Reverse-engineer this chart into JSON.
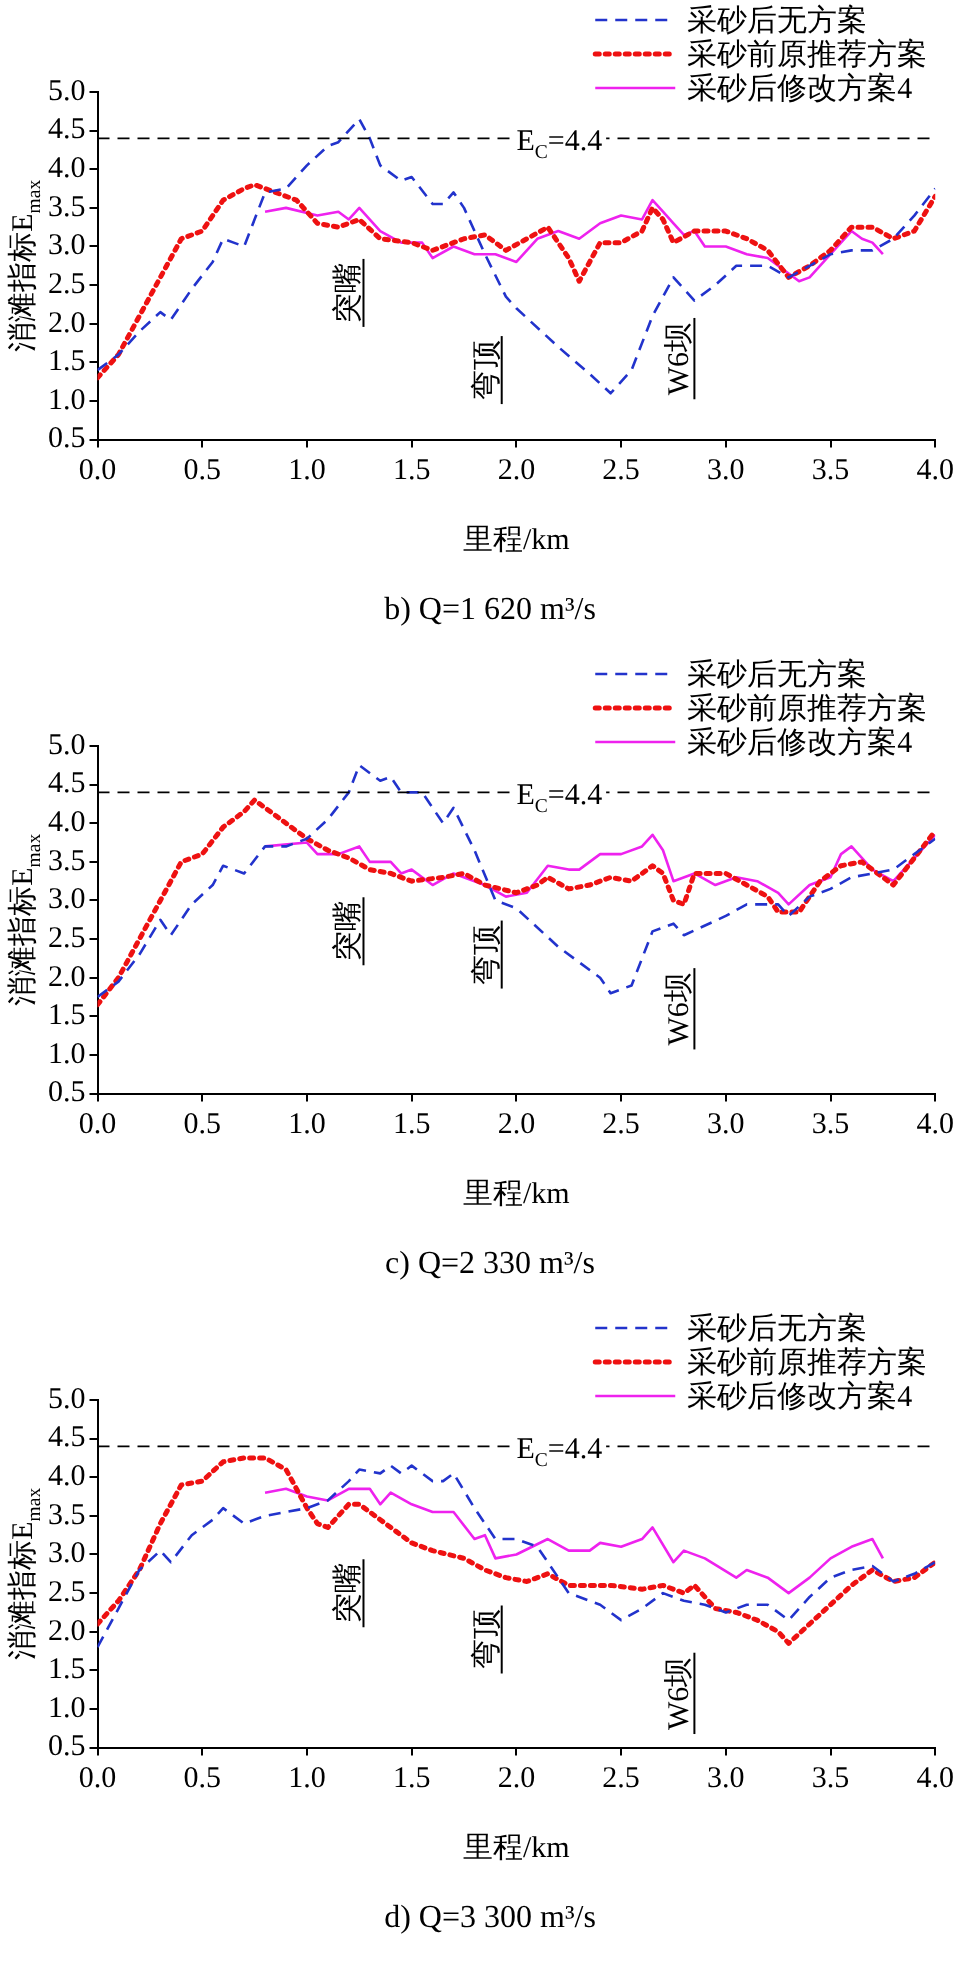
{
  "chart_data": [
    {
      "type": "line",
      "title": "b) Q=1 620 m³/s",
      "xlabel": "里程/km",
      "ylabel": "消滩指标E$_{max}$",
      "xlim": [
        0,
        4
      ],
      "ylim": [
        0.5,
        5
      ],
      "xticks": [
        {
          "value": 0,
          "label": "0.0"
        },
        {
          "value": 0.5,
          "label": "0.5"
        },
        {
          "value": 1,
          "label": "1.0"
        },
        {
          "value": 1.5,
          "label": "1.5"
        },
        {
          "value": 2,
          "label": "2.0"
        },
        {
          "value": 2.5,
          "label": "2.5"
        },
        {
          "value": 3,
          "label": "3.0"
        },
        {
          "value": 3.5,
          "label": "3.5"
        },
        {
          "value": 4,
          "label": "4.0"
        }
      ],
      "yticks": [
        {
          "value": 0.5,
          "label": "0.5"
        },
        {
          "value": 1,
          "label": "1.0"
        },
        {
          "value": 1.5,
          "label": "1.5"
        },
        {
          "value": 2,
          "label": "2.0"
        },
        {
          "value": 2.5,
          "label": "2.5"
        },
        {
          "value": 3,
          "label": "3.0"
        },
        {
          "value": 3.5,
          "label": "3.5"
        },
        {
          "value": 4,
          "label": "4.0"
        },
        {
          "value": 4.5,
          "label": "4.5"
        },
        {
          "value": 5,
          "label": "5.0"
        }
      ],
      "legend": "top right",
      "grid": false,
      "marker": "none",
      "ref_lines": [
        {
          "axis": "y",
          "value": 4.4,
          "label": "E$_{C}$=4.4",
          "color": "#000000",
          "line_style": "dashed"
        }
      ],
      "annotations": [
        "突嘴",
        "弯顶",
        "W6坝"
      ],
      "series": [
        {
          "name": "采砂后无方案",
          "color": "#2233cc",
          "line_style": "dashed",
          "x": [
            0,
            0.1,
            0.2,
            0.3,
            0.35,
            0.45,
            0.55,
            0.6,
            0.65,
            0.7,
            0.8,
            0.9,
            1.0,
            1.1,
            1.15,
            1.25,
            1.3,
            1.35,
            1.45,
            1.5,
            1.6,
            1.65,
            1.7,
            1.75,
            1.85,
            1.95,
            2.0,
            2.2,
            2.35,
            2.45,
            2.55,
            2.65,
            2.75,
            2.85,
            2.95,
            3.05,
            3.2,
            3.3,
            3.4,
            3.5,
            3.6,
            3.7,
            3.8,
            3.9,
            4.0
          ],
          "values": [
            1.4,
            1.6,
            1.9,
            2.15,
            2.05,
            2.45,
            2.8,
            3.1,
            3.05,
            3.0,
            3.7,
            3.75,
            4.05,
            4.3,
            4.35,
            4.65,
            4.4,
            4.05,
            3.85,
            3.9,
            3.55,
            3.55,
            3.7,
            3.5,
            2.9,
            2.35,
            2.2,
            1.7,
            1.35,
            1.1,
            1.4,
            2.1,
            2.6,
            2.3,
            2.5,
            2.75,
            2.75,
            2.6,
            2.75,
            2.9,
            2.95,
            2.95,
            3.1,
            3.4,
            3.75
          ]
        },
        {
          "name": "采砂前原推荐方案",
          "color": "#ee1111",
          "line_style": "dotted",
          "x": [
            0,
            0.1,
            0.2,
            0.3,
            0.4,
            0.5,
            0.6,
            0.7,
            0.75,
            0.85,
            0.95,
            1.05,
            1.15,
            1.25,
            1.35,
            1.5,
            1.6,
            1.75,
            1.85,
            1.95,
            2.05,
            2.15,
            2.25,
            2.3,
            2.4,
            2.5,
            2.6,
            2.65,
            2.7,
            2.75,
            2.85,
            3.0,
            3.1,
            3.2,
            3.3,
            3.4,
            3.5,
            3.6,
            3.7,
            3.8,
            3.9,
            4.0
          ],
          "values": [
            1.3,
            1.6,
            2.1,
            2.6,
            3.1,
            3.2,
            3.6,
            3.75,
            3.8,
            3.7,
            3.6,
            3.3,
            3.25,
            3.35,
            3.1,
            3.05,
            2.95,
            3.1,
            3.15,
            2.95,
            3.1,
            3.25,
            2.85,
            2.55,
            3.05,
            3.05,
            3.2,
            3.5,
            3.35,
            3.05,
            3.2,
            3.2,
            3.1,
            2.95,
            2.6,
            2.75,
            2.95,
            3.25,
            3.25,
            3.1,
            3.2,
            3.65
          ]
        },
        {
          "name": "采砂后修改方案4",
          "color": "#ee22ee",
          "line_style": "solid",
          "x": [
            0.8,
            0.9,
            1.05,
            1.15,
            1.2,
            1.25,
            1.35,
            1.45,
            1.55,
            1.6,
            1.7,
            1.8,
            1.9,
            2.0,
            2.1,
            2.2,
            2.3,
            2.4,
            2.5,
            2.6,
            2.65,
            2.7,
            2.75,
            2.8,
            2.85,
            2.9,
            3.0,
            3.1,
            3.2,
            3.25,
            3.35,
            3.4,
            3.5,
            3.6,
            3.65,
            3.7,
            3.75
          ],
          "values": [
            3.45,
            3.5,
            3.4,
            3.45,
            3.35,
            3.5,
            3.2,
            3.05,
            3.05,
            2.85,
            3.0,
            2.9,
            2.9,
            2.8,
            3.1,
            3.2,
            3.1,
            3.3,
            3.4,
            3.35,
            3.6,
            3.45,
            3.3,
            3.15,
            3.2,
            3.0,
            3.0,
            2.9,
            2.85,
            2.75,
            2.55,
            2.6,
            2.9,
            3.2,
            3.1,
            3.05,
            2.9
          ]
        }
      ]
    },
    {
      "type": "line",
      "title": "c) Q=2 330 m³/s",
      "xlabel": "里程/km",
      "ylabel": "消滩指标E$_{max}$",
      "xlim": [
        0,
        4
      ],
      "ylim": [
        0.5,
        5
      ],
      "xticks": [
        {
          "value": 0,
          "label": "0.0"
        },
        {
          "value": 0.5,
          "label": "0.5"
        },
        {
          "value": 1,
          "label": "1.0"
        },
        {
          "value": 1.5,
          "label": "1.5"
        },
        {
          "value": 2,
          "label": "2.0"
        },
        {
          "value": 2.5,
          "label": "2.5"
        },
        {
          "value": 3,
          "label": "3.0"
        },
        {
          "value": 3.5,
          "label": "3.5"
        },
        {
          "value": 4,
          "label": "4.0"
        }
      ],
      "yticks": [
        {
          "value": 0.5,
          "label": "0.5"
        },
        {
          "value": 1,
          "label": "1.0"
        },
        {
          "value": 1.5,
          "label": "1.5"
        },
        {
          "value": 2,
          "label": "2.0"
        },
        {
          "value": 2.5,
          "label": "2.5"
        },
        {
          "value": 3,
          "label": "3.0"
        },
        {
          "value": 3.5,
          "label": "3.5"
        },
        {
          "value": 4,
          "label": "4.0"
        },
        {
          "value": 4.5,
          "label": "4.5"
        },
        {
          "value": 5,
          "label": "5.0"
        }
      ],
      "legend": "top right",
      "grid": false,
      "marker": "none",
      "ref_lines": [
        {
          "axis": "y",
          "value": 4.4,
          "label": "E$_{C}$=4.4",
          "color": "#000000",
          "line_style": "dashed"
        }
      ],
      "annotations": [
        "突嘴",
        "弯顶",
        "W6坝"
      ],
      "series": [
        {
          "name": "采砂后无方案",
          "color": "#2233cc",
          "line_style": "dashed",
          "x": [
            0,
            0.1,
            0.2,
            0.3,
            0.35,
            0.45,
            0.55,
            0.6,
            0.7,
            0.8,
            0.9,
            1.0,
            1.1,
            1.2,
            1.25,
            1.35,
            1.4,
            1.45,
            1.55,
            1.65,
            1.7,
            1.8,
            1.9,
            2.0,
            2.2,
            2.4,
            2.45,
            2.55,
            2.65,
            2.75,
            2.8,
            3.0,
            3.1,
            3.25,
            3.3,
            3.4,
            3.5,
            3.6,
            3.7,
            3.8,
            3.9,
            4.0
          ],
          "values": [
            1.75,
            1.95,
            2.3,
            2.75,
            2.55,
            2.95,
            3.2,
            3.45,
            3.35,
            3.7,
            3.7,
            3.8,
            4.05,
            4.4,
            4.75,
            4.55,
            4.6,
            4.4,
            4.4,
            4.0,
            4.2,
            3.65,
            3.0,
            2.9,
            2.4,
            2.0,
            1.8,
            1.9,
            2.6,
            2.7,
            2.55,
            2.8,
            2.95,
            2.95,
            2.8,
            3.05,
            3.15,
            3.3,
            3.35,
            3.4,
            3.6,
            3.8
          ]
        },
        {
          "name": "采砂前原推荐方案",
          "color": "#ee1111",
          "line_style": "dotted",
          "x": [
            0,
            0.1,
            0.2,
            0.3,
            0.4,
            0.5,
            0.6,
            0.7,
            0.75,
            0.85,
            1.0,
            1.1,
            1.2,
            1.3,
            1.4,
            1.5,
            1.65,
            1.75,
            1.85,
            2.0,
            2.1,
            2.15,
            2.25,
            2.35,
            2.45,
            2.55,
            2.65,
            2.7,
            2.75,
            2.8,
            2.85,
            3.0,
            3.1,
            3.2,
            3.25,
            3.35,
            3.45,
            3.55,
            3.65,
            3.75,
            3.8,
            3.9,
            4.0
          ],
          "values": [
            1.65,
            2.0,
            2.5,
            3.0,
            3.5,
            3.6,
            3.95,
            4.15,
            4.3,
            4.1,
            3.8,
            3.65,
            3.55,
            3.4,
            3.35,
            3.25,
            3.3,
            3.35,
            3.2,
            3.1,
            3.2,
            3.3,
            3.15,
            3.2,
            3.3,
            3.25,
            3.45,
            3.35,
            3.0,
            2.95,
            3.35,
            3.35,
            3.2,
            3.05,
            2.85,
            2.85,
            3.25,
            3.45,
            3.5,
            3.3,
            3.2,
            3.55,
            3.9
          ]
        },
        {
          "name": "采砂后修改方案4",
          "color": "#ee22ee",
          "line_style": "solid",
          "x": [
            0.8,
            1.0,
            1.05,
            1.15,
            1.25,
            1.3,
            1.4,
            1.45,
            1.5,
            1.6,
            1.7,
            1.8,
            1.85,
            1.95,
            2.05,
            2.15,
            2.25,
            2.3,
            2.4,
            2.5,
            2.6,
            2.65,
            2.7,
            2.75,
            2.85,
            2.95,
            3.05,
            3.15,
            3.25,
            3.3,
            3.4,
            3.5,
            3.55,
            3.6,
            3.7,
            3.8,
            3.9,
            4.0
          ],
          "values": [
            3.7,
            3.75,
            3.6,
            3.6,
            3.7,
            3.5,
            3.5,
            3.35,
            3.4,
            3.2,
            3.35,
            3.25,
            3.2,
            3.05,
            3.1,
            3.45,
            3.4,
            3.4,
            3.6,
            3.6,
            3.7,
            3.85,
            3.65,
            3.25,
            3.35,
            3.2,
            3.3,
            3.25,
            3.1,
            2.95,
            3.2,
            3.3,
            3.6,
            3.7,
            3.4,
            3.25,
            3.55,
            3.85
          ]
        }
      ]
    },
    {
      "type": "line",
      "title": "d) Q=3 300 m³/s",
      "xlabel": "里程/km",
      "ylabel": "消滩指标E$_{max}$",
      "xlim": [
        0,
        4
      ],
      "ylim": [
        0.5,
        5
      ],
      "xticks": [
        {
          "value": 0,
          "label": "0.0"
        },
        {
          "value": 0.5,
          "label": "0.5"
        },
        {
          "value": 1,
          "label": "1.0"
        },
        {
          "value": 1.5,
          "label": "1.5"
        },
        {
          "value": 2,
          "label": "2.0"
        },
        {
          "value": 2.5,
          "label": "2.5"
        },
        {
          "value": 3,
          "label": "3.0"
        },
        {
          "value": 3.5,
          "label": "3.5"
        },
        {
          "value": 4,
          "label": "4.0"
        }
      ],
      "yticks": [
        {
          "value": 0.5,
          "label": "0.5"
        },
        {
          "value": 1,
          "label": "1.0"
        },
        {
          "value": 1.5,
          "label": "1.5"
        },
        {
          "value": 2,
          "label": "2.0"
        },
        {
          "value": 2.5,
          "label": "2.5"
        },
        {
          "value": 3,
          "label": "3.0"
        },
        {
          "value": 3.5,
          "label": "3.5"
        },
        {
          "value": 4,
          "label": "4.0"
        },
        {
          "value": 4.5,
          "label": "4.5"
        },
        {
          "value": 5,
          "label": "5.0"
        }
      ],
      "legend": "top right",
      "grid": false,
      "marker": "none",
      "ref_lines": [
        {
          "axis": "y",
          "value": 4.4,
          "label": "E$_{C}$=4.4",
          "color": "#000000",
          "line_style": "dashed"
        }
      ],
      "annotations": [
        "突嘴",
        "弯顶",
        "W6坝"
      ],
      "series": [
        {
          "name": "采砂后无方案",
          "color": "#2233cc",
          "line_style": "dashed",
          "x": [
            0,
            0.1,
            0.2,
            0.3,
            0.35,
            0.45,
            0.55,
            0.6,
            0.7,
            0.8,
            0.9,
            1.0,
            1.1,
            1.2,
            1.25,
            1.35,
            1.4,
            1.45,
            1.5,
            1.6,
            1.65,
            1.7,
            1.8,
            1.9,
            2.0,
            2.1,
            2.25,
            2.4,
            2.5,
            2.6,
            2.7,
            2.8,
            2.9,
            3.0,
            3.1,
            3.2,
            3.3,
            3.4,
            3.5,
            3.6,
            3.7,
            3.8,
            3.9,
            4.0
          ],
          "values": [
            1.8,
            2.3,
            2.8,
            3.05,
            2.9,
            3.25,
            3.45,
            3.6,
            3.4,
            3.5,
            3.55,
            3.6,
            3.7,
            3.95,
            4.1,
            4.05,
            4.15,
            4.05,
            4.15,
            3.95,
            3.95,
            4.05,
            3.6,
            3.2,
            3.2,
            3.1,
            2.5,
            2.35,
            2.15,
            2.3,
            2.5,
            2.4,
            2.35,
            2.25,
            2.35,
            2.35,
            2.15,
            2.45,
            2.7,
            2.8,
            2.85,
            2.65,
            2.75,
            2.9
          ]
        },
        {
          "name": "采砂前原推荐方案",
          "color": "#ee1111",
          "line_style": "dotted",
          "x": [
            0,
            0.1,
            0.2,
            0.3,
            0.4,
            0.5,
            0.6,
            0.7,
            0.8,
            0.9,
            1.0,
            1.05,
            1.1,
            1.2,
            1.25,
            1.35,
            1.5,
            1.6,
            1.75,
            1.85,
            1.95,
            2.05,
            2.15,
            2.25,
            2.35,
            2.45,
            2.6,
            2.7,
            2.8,
            2.85,
            2.95,
            3.05,
            3.15,
            3.25,
            3.3,
            3.4,
            3.5,
            3.6,
            3.7,
            3.8,
            3.9,
            4.0
          ],
          "values": [
            2.1,
            2.4,
            2.8,
            3.4,
            3.9,
            3.95,
            4.2,
            4.25,
            4.25,
            4.1,
            3.6,
            3.4,
            3.35,
            3.65,
            3.65,
            3.45,
            3.15,
            3.05,
            2.95,
            2.8,
            2.7,
            2.65,
            2.75,
            2.6,
            2.6,
            2.6,
            2.55,
            2.6,
            2.5,
            2.6,
            2.3,
            2.25,
            2.15,
            2.0,
            1.85,
            2.1,
            2.35,
            2.6,
            2.8,
            2.65,
            2.7,
            2.9
          ]
        },
        {
          "name": "采砂后修改方案4",
          "color": "#ee22ee",
          "line_style": "solid",
          "x": [
            0.8,
            0.9,
            1.0,
            1.1,
            1.2,
            1.3,
            1.35,
            1.4,
            1.5,
            1.6,
            1.7,
            1.8,
            1.85,
            1.9,
            2.0,
            2.15,
            2.25,
            2.35,
            2.4,
            2.5,
            2.6,
            2.65,
            2.75,
            2.8,
            2.9,
            3.05,
            3.1,
            3.2,
            3.3,
            3.4,
            3.5,
            3.6,
            3.7,
            3.75
          ],
          "values": [
            3.8,
            3.85,
            3.75,
            3.7,
            3.85,
            3.85,
            3.65,
            3.8,
            3.65,
            3.55,
            3.55,
            3.2,
            3.25,
            2.95,
            3.0,
            3.2,
            3.05,
            3.05,
            3.15,
            3.1,
            3.2,
            3.35,
            2.9,
            3.05,
            2.95,
            2.7,
            2.8,
            2.7,
            2.5,
            2.7,
            2.95,
            3.1,
            3.2,
            2.95
          ]
        }
      ]
    }
  ]
}
